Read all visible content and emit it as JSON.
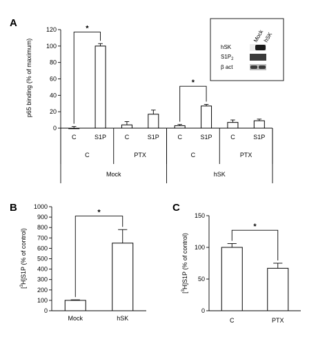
{
  "chart_data": [
    {
      "panel": "A",
      "type": "bar",
      "ylabel": "p65 binding (% of maximum)",
      "ylim": [
        0,
        120
      ],
      "yticks": [
        "0",
        "20",
        "40",
        "60",
        "80",
        "100",
        "120"
      ],
      "bars": [
        {
          "label": "C",
          "value": 0,
          "error": 2
        },
        {
          "label": "S1P",
          "value": 100,
          "error": 3
        },
        {
          "label": "C",
          "value": 4,
          "error": 4
        },
        {
          "label": "S1P",
          "value": 17,
          "error": 5
        },
        {
          "label": "C",
          "value": 3,
          "error": 1.5
        },
        {
          "label": "S1P",
          "value": 27,
          "error": 2
        },
        {
          "label": "C",
          "value": 7,
          "error": 3
        },
        {
          "label": "S1P",
          "value": 9,
          "error": 2
        }
      ],
      "treatment_groups": [
        "C",
        "PTX",
        "C",
        "PTX"
      ],
      "cell_groups": [
        "Mock",
        "hSK"
      ],
      "significance": [
        {
          "bars": [
            0,
            1
          ],
          "label": "*"
        },
        {
          "bars": [
            4,
            5
          ],
          "label": "*"
        }
      ],
      "blot": {
        "columns": [
          "Mock",
          "hSK"
        ],
        "rows": [
          "hSK",
          "S1P",
          "β act"
        ],
        "row_subscript": [
          "",
          "2",
          ""
        ]
      }
    },
    {
      "panel": "B",
      "type": "bar",
      "ylabel_sup": "3",
      "ylabel_rest": "H]S1P (% of control)",
      "ylim": [
        0,
        1000
      ],
      "yticks": [
        "0",
        "100",
        "200",
        "300",
        "400",
        "500",
        "600",
        "700",
        "800",
        "900",
        "1000"
      ],
      "categories": [
        "Mock",
        "hSK"
      ],
      "values": [
        100,
        650
      ],
      "errors": [
        5,
        130
      ],
      "significance": [
        {
          "bars": [
            0,
            1
          ],
          "label": "*"
        }
      ]
    },
    {
      "panel": "C",
      "type": "bar",
      "ylabel_sup": "3",
      "ylabel_rest": "H]S1P (% of control)",
      "ylim": [
        0,
        150
      ],
      "yticks": [
        "0",
        "50",
        "100",
        "150"
      ],
      "categories": [
        "C",
        "PTX"
      ],
      "values": [
        100,
        67
      ],
      "errors": [
        6,
        8
      ],
      "significance": [
        {
          "bars": [
            0,
            1
          ],
          "label": "*"
        }
      ]
    }
  ]
}
